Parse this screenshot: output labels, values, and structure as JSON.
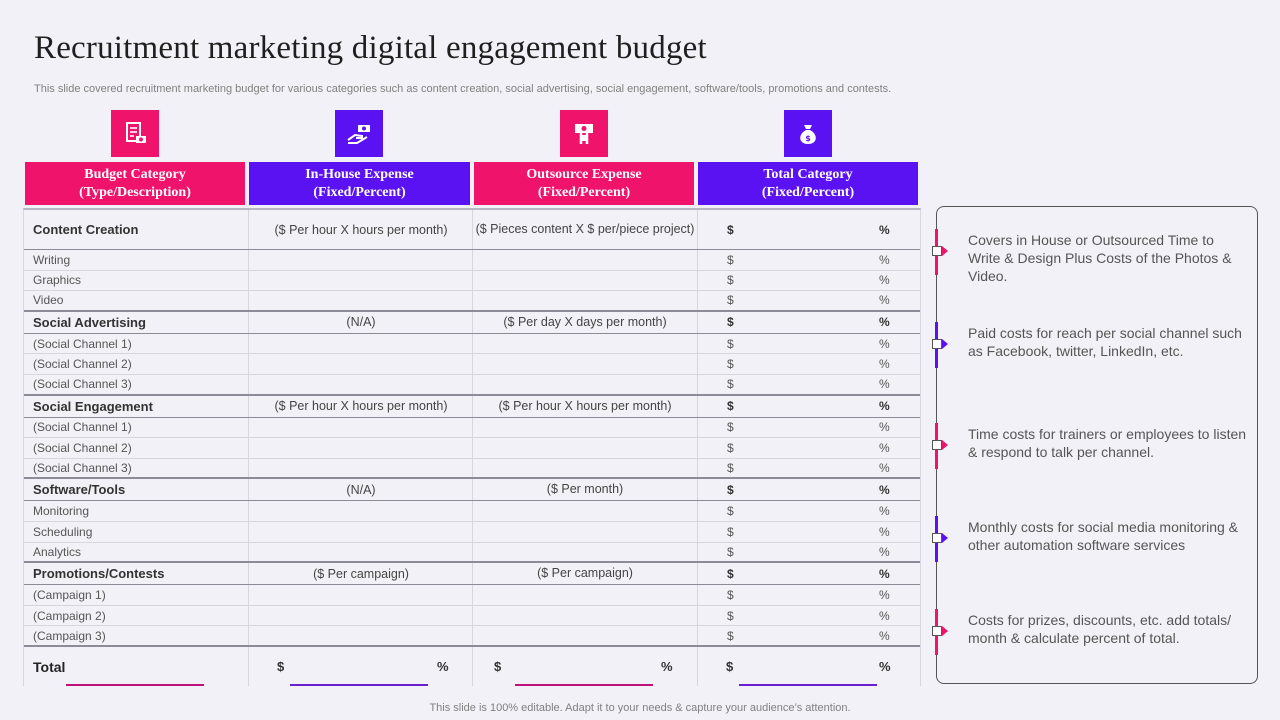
{
  "header": {
    "title": "Recruitment marketing digital engagement budget",
    "subtitle": "This slide covered recruitment marketing budget for various categories such as content creation, social advertising, social engagement, software/tools, promotions and contests."
  },
  "columns": [
    {
      "line1": "Budget Category",
      "line2": "(Type/Description)",
      "icon": "document-money-icon",
      "color": "#f0136c"
    },
    {
      "line1": "In-House Expense",
      "line2": "(Fixed/Percent)",
      "icon": "hand-money-icon",
      "color": "#5b12f2"
    },
    {
      "line1": "Outsource Expense",
      "line2": "(Fixed/Percent)",
      "icon": "hand-cash-icon",
      "color": "#f0136c"
    },
    {
      "line1": "Total Category",
      "line2": "(Fixed/Percent)",
      "icon": "money-bag-icon",
      "color": "#5b12f2"
    }
  ],
  "rows": [
    {
      "name": "Content Creation",
      "inhouse": "($ Per hour X hours per month)",
      "outsource": "($ Pieces content X $ per/piece project)",
      "dollar": "$",
      "pct": "%",
      "type": "cat"
    },
    {
      "name": "Writing",
      "inhouse": "",
      "outsource": "",
      "dollar": "$",
      "pct": "%",
      "type": "sub"
    },
    {
      "name": "Graphics",
      "inhouse": "",
      "outsource": "",
      "dollar": "$",
      "pct": "%",
      "type": "sub"
    },
    {
      "name": "Video",
      "inhouse": "",
      "outsource": "",
      "dollar": "$",
      "pct": "%",
      "type": "sub"
    },
    {
      "name": "Social Advertising",
      "inhouse": "(N/A)",
      "outsource": "($ Per day X days per month)",
      "dollar": "$",
      "pct": "%",
      "type": "cat"
    },
    {
      "name": "(Social Channel 1)",
      "inhouse": "",
      "outsource": "",
      "dollar": "$",
      "pct": "%",
      "type": "sub"
    },
    {
      "name": "(Social Channel 2)",
      "inhouse": "",
      "outsource": "",
      "dollar": "$",
      "pct": "%",
      "type": "sub"
    },
    {
      "name": "(Social Channel 3)",
      "inhouse": "",
      "outsource": "",
      "dollar": "$",
      "pct": "%",
      "type": "sub"
    },
    {
      "name": "Social Engagement",
      "inhouse": "($ Per hour X hours per month)",
      "outsource": "($ Per hour X hours per month)",
      "dollar": "$",
      "pct": "%",
      "type": "cat"
    },
    {
      "name": "(Social Channel 1)",
      "inhouse": "",
      "outsource": "",
      "dollar": "$",
      "pct": "%",
      "type": "sub"
    },
    {
      "name": "(Social Channel 2)",
      "inhouse": "",
      "outsource": "",
      "dollar": "$",
      "pct": "%",
      "type": "sub"
    },
    {
      "name": "(Social Channel 3)",
      "inhouse": "",
      "outsource": "",
      "dollar": "$",
      "pct": "%",
      "type": "sub"
    },
    {
      "name": "Software/Tools",
      "inhouse": "(N/A)",
      "outsource": "($ Per month)",
      "dollar": "$",
      "pct": "%",
      "type": "cat"
    },
    {
      "name": "Monitoring",
      "inhouse": "",
      "outsource": "",
      "dollar": "$",
      "pct": "%",
      "type": "sub"
    },
    {
      "name": "Scheduling",
      "inhouse": "",
      "outsource": "",
      "dollar": "$",
      "pct": "%",
      "type": "sub"
    },
    {
      "name": "Analytics",
      "inhouse": "",
      "outsource": "",
      "dollar": "$",
      "pct": "%",
      "type": "sub"
    },
    {
      "name": "Promotions/Contests",
      "inhouse": "($ Per campaign)",
      "outsource": "($ Per campaign)",
      "dollar": "$",
      "pct": "%",
      "type": "cat"
    },
    {
      "name": "(Campaign 1)",
      "inhouse": "",
      "outsource": "",
      "dollar": "$",
      "pct": "%",
      "type": "sub"
    },
    {
      "name": "(Campaign 2)",
      "inhouse": "",
      "outsource": "",
      "dollar": "$",
      "pct": "%",
      "type": "sub"
    },
    {
      "name": "(Campaign 3)",
      "inhouse": "",
      "outsource": "",
      "dollar": "$",
      "pct": "%",
      "type": "sub"
    }
  ],
  "total": {
    "label": "Total",
    "in_dollar": "$",
    "in_pct": "%",
    "out_dollar": "$",
    "out_pct": "%",
    "tot_dollar": "$",
    "tot_pct": "%"
  },
  "notes": [
    {
      "text": "Covers in House or Outsourced Time to Write & Design Plus Costs of the Photos & Video.",
      "color": "#f0136c"
    },
    {
      "text": "Paid costs for reach per social channel such as Facebook, twitter, LinkedIn, etc.",
      "color": "#5b12f2"
    },
    {
      "text": "Time costs for trainers or employees to listen & respond to talk per channel.",
      "color": "#f0136c"
    },
    {
      "text": "Monthly costs for social media monitoring & other automation software services",
      "color": "#5b12f2"
    },
    {
      "text": "Costs for prizes, discounts, etc. add totals/ month & calculate percent of total.",
      "color": "#f0136c"
    }
  ],
  "footer": "This slide is 100% editable. Adapt it to your needs & capture your audience’s attention."
}
